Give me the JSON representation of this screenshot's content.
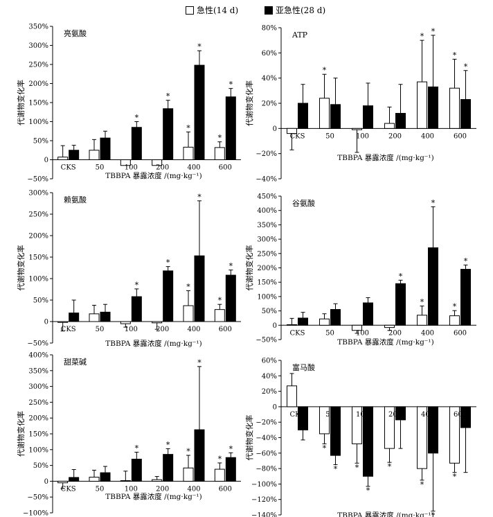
{
  "legend": {
    "acute": "急性(14 d)",
    "subacute": "亚急性(28 d)"
  },
  "colors": {
    "acute_fill": "#ffffff",
    "subacute_fill": "#000000",
    "stroke": "#000000"
  },
  "chart_data": [
    {
      "type": "bar",
      "title": "亮氨酸",
      "ylabel": "代谢物变化率",
      "xlabel": "TBBPA 暴露浓度 /(mg·kg⁻¹)",
      "categories": [
        "CKS",
        "50",
        "100",
        "200",
        "400",
        "600"
      ],
      "ylim": [
        -50,
        350
      ],
      "yticks": [
        -50,
        0,
        50,
        100,
        150,
        200,
        250,
        300,
        350
      ],
      "yticklabels": [
        "−50%",
        "0",
        "50%",
        "100%",
        "150%",
        "200%",
        "250%",
        "300%",
        "350%"
      ],
      "series": [
        {
          "name": "急性(14 d)",
          "values": [
            7,
            25,
            -15,
            -15,
            33,
            32
          ],
          "errors": [
            30,
            28,
            0,
            0,
            40,
            15
          ],
          "sig": [
            false,
            false,
            false,
            false,
            true,
            true
          ]
        },
        {
          "name": "亚急性(28 d)",
          "values": [
            25,
            57,
            85,
            134,
            248,
            165
          ],
          "errors": [
            13,
            18,
            15,
            22,
            38,
            22
          ],
          "sig": [
            false,
            false,
            true,
            true,
            true,
            true
          ]
        }
      ]
    },
    {
      "type": "bar",
      "title": "ATP",
      "ylabel": "代谢物变化率",
      "xlabel": "TBBPA 暴露浓度 /(mg·kg⁻¹)",
      "categories": [
        "CKS",
        "50",
        "100",
        "200",
        "400",
        "600"
      ],
      "ylim": [
        -40,
        80
      ],
      "yticks": [
        -40,
        -20,
        0,
        20,
        40,
        60,
        80
      ],
      "yticklabels": [
        "−40%",
        "−20%",
        "0",
        "20%",
        "40%",
        "60%",
        "80%"
      ],
      "series": [
        {
          "name": "急性(14 d)",
          "values": [
            -4,
            24,
            -1,
            4,
            37,
            32
          ],
          "errors": [
            13,
            19,
            18,
            13,
            33,
            23
          ],
          "sig": [
            false,
            true,
            false,
            false,
            true,
            true
          ]
        },
        {
          "name": "亚急性(28 d)",
          "values": [
            20,
            19,
            18,
            12,
            33,
            23
          ],
          "errors": [
            15,
            21,
            18,
            23,
            41,
            23
          ],
          "sig": [
            false,
            false,
            false,
            false,
            true,
            true
          ]
        }
      ]
    },
    {
      "type": "bar",
      "title": "赖氨酸",
      "ylabel": "代谢物变化率",
      "xlabel": "TBBPA 暴露浓度 /(mg·kg⁻¹)",
      "categories": [
        "CKS",
        "50",
        "100",
        "200",
        "400",
        "600"
      ],
      "ylim": [
        -50,
        300
      ],
      "yticks": [
        -50,
        0,
        50,
        100,
        150,
        200,
        250,
        300
      ],
      "yticklabels": [
        "−50%",
        "0",
        "50%",
        "100%",
        "150%",
        "200%",
        "250%",
        "300%"
      ],
      "series": [
        {
          "name": "急性(14 d)",
          "values": [
            -2,
            18,
            -5,
            -3,
            37,
            28
          ],
          "errors": [
            20,
            20,
            8,
            15,
            35,
            12
          ],
          "sig": [
            false,
            false,
            false,
            false,
            true,
            true
          ]
        },
        {
          "name": "亚急性(28 d)",
          "values": [
            20,
            22,
            58,
            118,
            153,
            108
          ],
          "errors": [
            30,
            18,
            18,
            10,
            128,
            12
          ],
          "sig": [
            false,
            false,
            true,
            true,
            true,
            true
          ]
        }
      ]
    },
    {
      "type": "bar",
      "title": "谷氨酸",
      "ylabel": "代谢物变化率",
      "xlabel": "TBBPA 暴露浓度 /(mg·kg⁻¹)",
      "categories": [
        "CKS",
        "50",
        "100",
        "200",
        "400",
        "600"
      ],
      "ylim": [
        -50,
        450
      ],
      "yticks": [
        -50,
        0,
        50,
        100,
        150,
        200,
        250,
        300,
        350,
        400,
        450
      ],
      "yticklabels": [
        "−50%",
        "0",
        "50%",
        "100%",
        "150%",
        "200%",
        "250%",
        "300%",
        "350%",
        "400%",
        "450%"
      ],
      "series": [
        {
          "name": "急性(14 d)",
          "values": [
            2,
            22,
            -18,
            -8,
            35,
            33
          ],
          "errors": [
            22,
            18,
            10,
            10,
            32,
            18
          ],
          "sig": [
            false,
            false,
            false,
            false,
            true,
            true
          ]
        },
        {
          "name": "亚急性(28 d)",
          "values": [
            25,
            55,
            78,
            145,
            270,
            195
          ],
          "errors": [
            20,
            20,
            18,
            12,
            143,
            15
          ],
          "sig": [
            false,
            false,
            false,
            true,
            true,
            true
          ]
        }
      ]
    },
    {
      "type": "bar",
      "title": "甜菜碱",
      "ylabel": "代谢物变化率",
      "xlabel": "TBBPA 暴露浓度 /(mg·kg⁻¹)",
      "categories": [
        "CKS",
        "50",
        "100",
        "200",
        "400",
        "600"
      ],
      "ylim": [
        -100,
        400
      ],
      "yticks": [
        -100,
        -50,
        0,
        50,
        100,
        150,
        200,
        250,
        300,
        350,
        400
      ],
      "yticklabels": [
        "−100%",
        "−50%",
        "0",
        "50%",
        "100%",
        "150%",
        "200%",
        "250%",
        "300%",
        "350%",
        "400%"
      ],
      "series": [
        {
          "name": "急性(14 d)",
          "values": [
            -5,
            13,
            2,
            5,
            42,
            38
          ],
          "errors": [
            18,
            22,
            30,
            10,
            40,
            20
          ],
          "sig": [
            false,
            false,
            false,
            false,
            true,
            true
          ]
        },
        {
          "name": "亚急性(28 d)",
          "values": [
            12,
            27,
            70,
            85,
            163,
            75
          ],
          "errors": [
            25,
            20,
            22,
            18,
            200,
            15
          ],
          "sig": [
            false,
            false,
            true,
            true,
            true,
            true
          ]
        }
      ]
    },
    {
      "type": "bar",
      "title": "富马酸",
      "ylabel": "代谢物变化率",
      "xlabel": "TBBPA 暴露浓度 /(mg·kg⁻¹)",
      "categories": [
        "CKS",
        "50",
        "100",
        "200",
        "400",
        "600"
      ],
      "ylim": [
        -140,
        60
      ],
      "yticks": [
        -140,
        -120,
        -100,
        -80,
        -60,
        -40,
        -20,
        0,
        20,
        40,
        60
      ],
      "yticklabels": [
        "−140%",
        "−120%",
        "−100%",
        "−80%",
        "−60%",
        "−40%",
        "−20%",
        "0",
        "20%",
        "40%",
        "60%"
      ],
      "series": [
        {
          "name": "急性(14 d)",
          "values": [
            27,
            -35,
            -48,
            -54,
            -80,
            -73
          ],
          "errors": [
            16,
            13,
            25,
            18,
            15,
            12
          ],
          "sig": [
            false,
            true,
            true,
            true,
            true,
            true
          ]
        },
        {
          "name": "亚急性(28 d)",
          "values": [
            -30,
            -63,
            -90,
            -17,
            -60,
            -27
          ],
          "errors": [
            13,
            12,
            13,
            37,
            75,
            58
          ],
          "sig": [
            false,
            true,
            true,
            false,
            true,
            false
          ]
        }
      ]
    }
  ]
}
